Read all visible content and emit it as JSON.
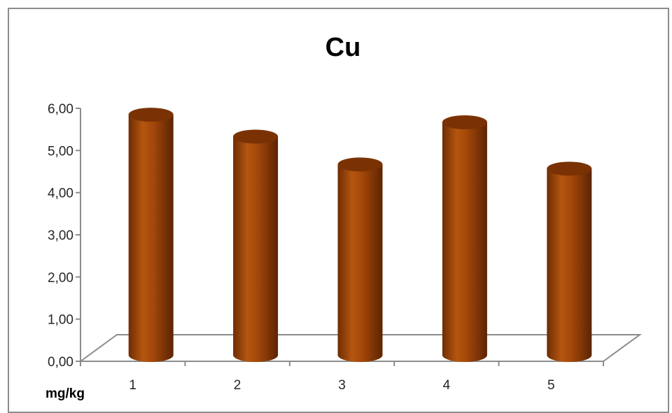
{
  "chart_data": {
    "type": "bar",
    "style": "3d-cylinder",
    "title": "Cu",
    "unit_label": "mg/kg",
    "categories": [
      "1",
      "2",
      "3",
      "4",
      "5"
    ],
    "values": [
      5.6,
      5.08,
      4.42,
      5.42,
      4.32
    ],
    "ylim": [
      0,
      6
    ],
    "yticks": [
      "0,00",
      "1,00",
      "2,00",
      "3,00",
      "4,00",
      "5,00",
      "6,00"
    ],
    "grid": false,
    "legend": "none",
    "bar_color": "#a0460a"
  }
}
